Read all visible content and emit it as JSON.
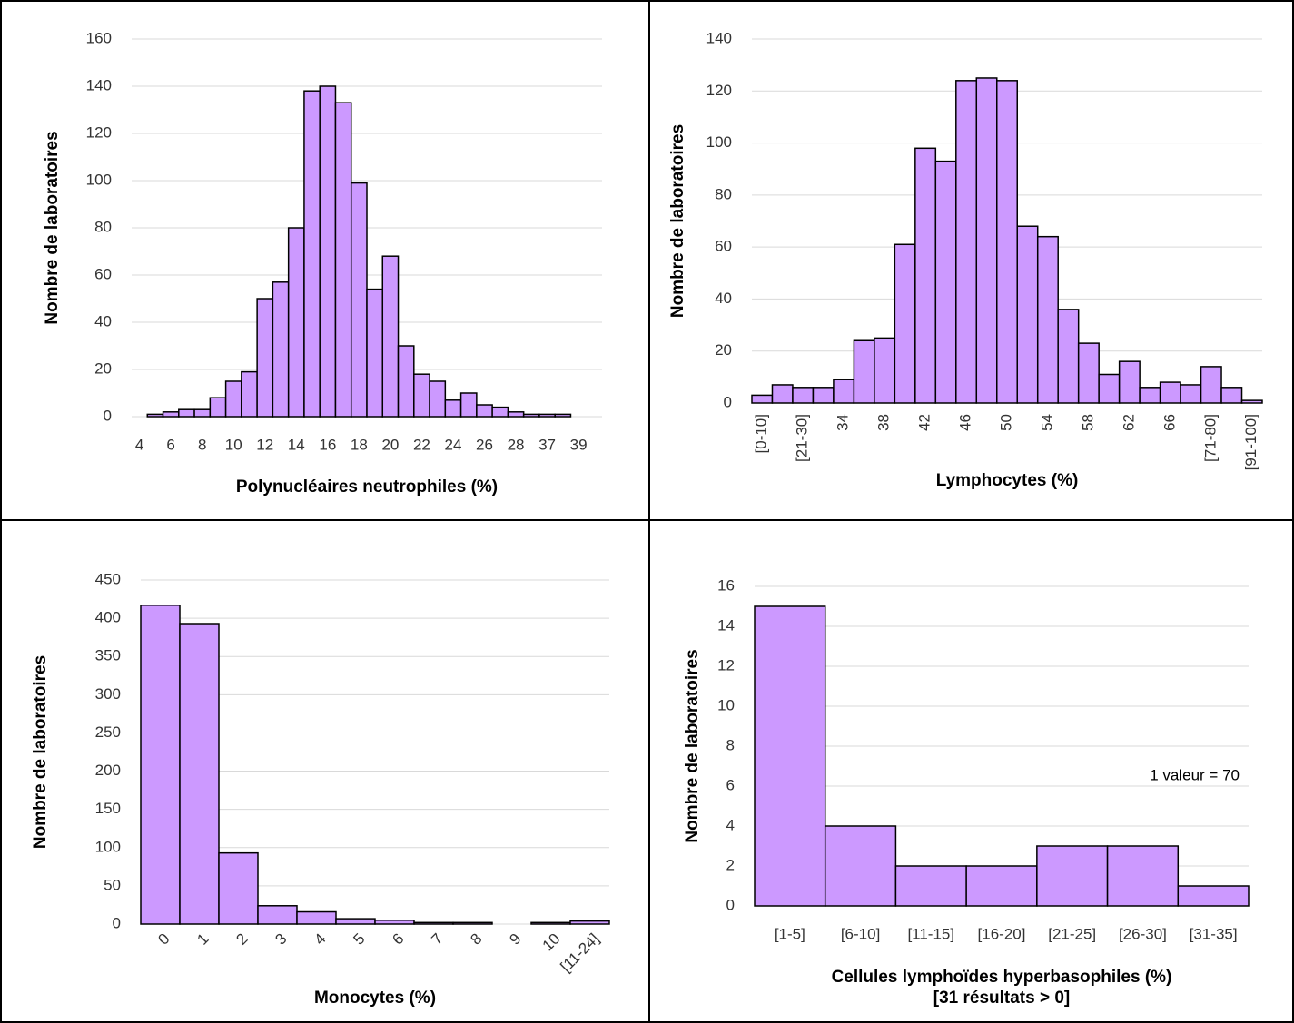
{
  "chart_data": [
    {
      "type": "bar",
      "ylabel": "Nombre de laboratoires",
      "xlabel": "Polynucléaires neutrophiles (%)",
      "categories": [
        "4",
        null,
        "6",
        null,
        "8",
        null,
        "10",
        null,
        "12",
        null,
        "14",
        null,
        "16",
        null,
        "18",
        null,
        "20",
        null,
        "22",
        null,
        "24",
        null,
        "26",
        null,
        "28",
        null,
        "37",
        null,
        "39",
        null
      ],
      "values": [
        0,
        1,
        2,
        3,
        3,
        8,
        15,
        19,
        50,
        57,
        80,
        138,
        140,
        133,
        99,
        54,
        68,
        30,
        18,
        15,
        7,
        10,
        5,
        4,
        2,
        1,
        1,
        1,
        0,
        0
      ],
      "color": "#cc99ff",
      "ylim": [
        0,
        160
      ],
      "yticks": [
        0,
        20,
        40,
        60,
        80,
        100,
        120,
        140,
        160
      ],
      "grid": true
    },
    {
      "type": "bar",
      "ylabel": "Nombre de laboratoires",
      "xlabel": "Lymphocytes (%)",
      "categories": [
        "[0-10]",
        null,
        "[21-30]",
        null,
        "34",
        null,
        "38",
        null,
        "42",
        null,
        "46",
        null,
        "50",
        null,
        "54",
        null,
        "58",
        null,
        "62",
        null,
        "66",
        null,
        "[71-80]",
        null,
        "[91-100]"
      ],
      "values": [
        3,
        7,
        6,
        6,
        9,
        24,
        25,
        61,
        98,
        93,
        124,
        125,
        124,
        68,
        64,
        36,
        23,
        11,
        16,
        6,
        8,
        7,
        14,
        6,
        1
      ],
      "color": "#cc99ff",
      "ylim": [
        0,
        140
      ],
      "yticks": [
        0,
        20,
        40,
        60,
        80,
        100,
        120,
        140
      ],
      "grid": true
    },
    {
      "type": "bar",
      "ylabel": "Nombre de laboratoires",
      "xlabel": "Monocytes (%)",
      "categories": [
        "0",
        "1",
        "2",
        "3",
        "4",
        "5",
        "6",
        "7",
        "8",
        "9",
        "10",
        "[11-24]"
      ],
      "values": [
        417,
        393,
        93,
        24,
        16,
        7,
        5,
        2,
        2,
        0,
        2,
        4
      ],
      "color": "#cc99ff",
      "ylim": [
        0,
        450
      ],
      "yticks": [
        0,
        50,
        100,
        150,
        200,
        250,
        300,
        350,
        400,
        450
      ],
      "grid": true
    },
    {
      "type": "bar",
      "ylabel": "Nombre de laboratoires",
      "xlabel": "Cellules lymphoïdes hyperbasophiles (%)",
      "xlabel2": "[31 résultats > 0]",
      "annotation": "1 valeur = 70",
      "categories": [
        "[1-5]",
        "[6-10]",
        "[11-15]",
        "[16-20]",
        "[21-25]",
        "[26-30]",
        "[31-35]"
      ],
      "values": [
        15,
        4,
        2,
        2,
        3,
        3,
        1
      ],
      "color": "#cc99ff",
      "ylim": [
        0,
        16
      ],
      "yticks": [
        0,
        2,
        4,
        6,
        8,
        10,
        12,
        14,
        16
      ],
      "grid": true
    }
  ]
}
